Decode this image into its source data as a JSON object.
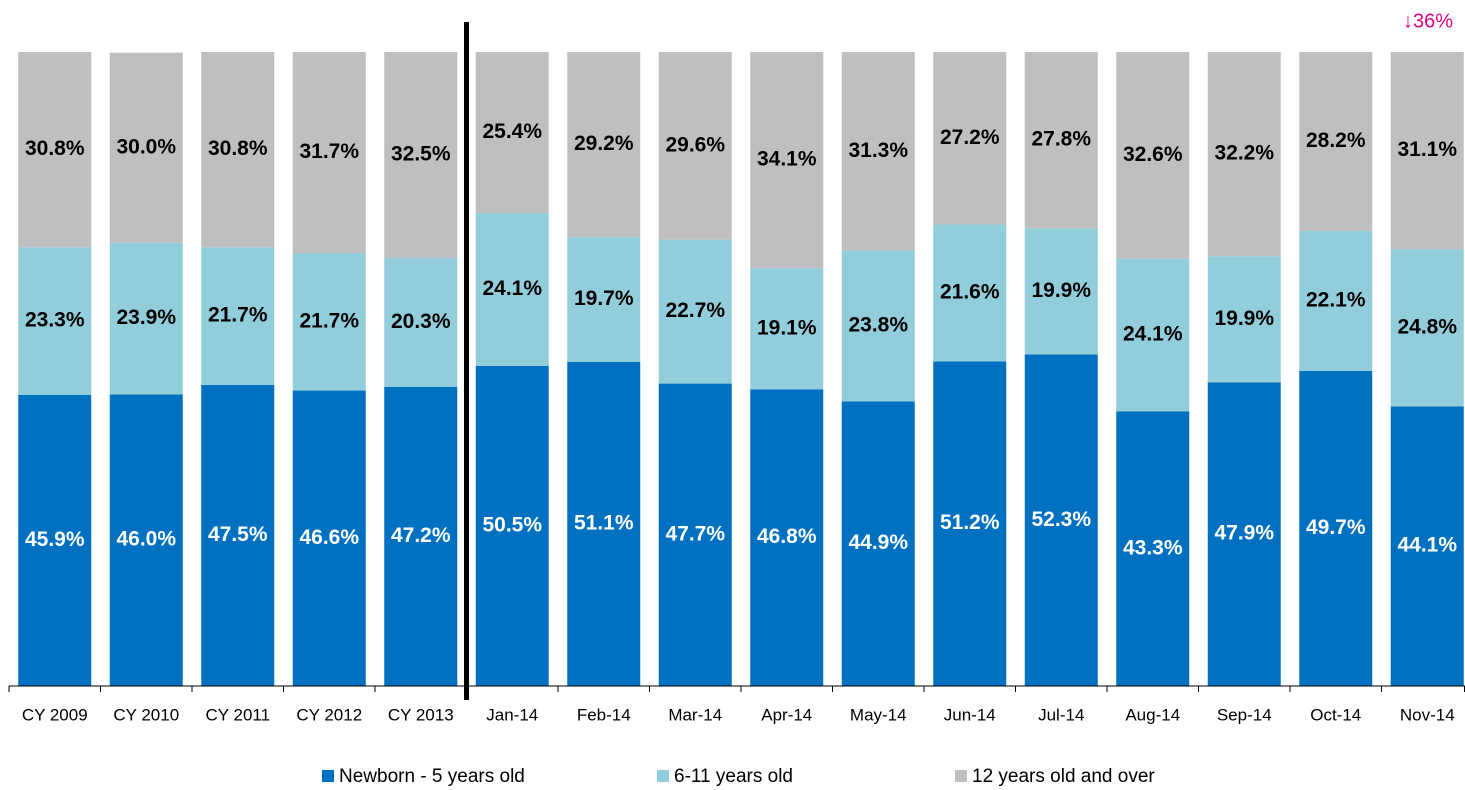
{
  "chart_data": {
    "type": "stacked_bar",
    "annotation": "↓36%",
    "categories": [
      "CY 2009",
      "CY 2010",
      "CY 2011",
      "CY 2012",
      "CY 2013",
      "Jan-14",
      "Feb-14",
      "Mar-14",
      "Apr-14",
      "May-14",
      "Jun-14",
      "Jul-14",
      "Aug-14",
      "Sep-14",
      "Oct-14",
      "Nov-14"
    ],
    "ylim": [
      0,
      100
    ],
    "series": [
      {
        "name": "Newborn - 5 years old",
        "color": "#0070c0",
        "label_color": "#ffffff",
        "values": [
          45.9,
          46.0,
          47.5,
          46.6,
          47.2,
          50.5,
          51.1,
          47.7,
          46.8,
          44.9,
          51.2,
          52.3,
          43.3,
          47.9,
          49.7,
          44.1
        ],
        "value_labels": [
          "45.9%",
          "46.0%",
          "47.5%",
          "46.6%",
          "47.2%",
          "50.5%",
          "51.1%",
          "47.7%",
          "46.8%",
          "44.9%",
          "51.2%",
          "52.3%",
          "43.3%",
          "47.9%",
          "49.7%",
          "44.1%"
        ]
      },
      {
        "name": "6-11 years old",
        "color": "#92cddc",
        "label_color": "#000000",
        "values": [
          23.3,
          23.9,
          21.7,
          21.7,
          20.3,
          24.1,
          19.7,
          22.7,
          19.1,
          23.8,
          21.6,
          19.9,
          24.1,
          19.9,
          22.1,
          24.8
        ],
        "value_labels": [
          "23.3%",
          "23.9%",
          "21.7%",
          "21.7%",
          "20.3%",
          "24.1%",
          "19.7%",
          "22.7%",
          "19.1%",
          "23.8%",
          "21.6%",
          "19.9%",
          "24.1%",
          "19.9%",
          "22.1%",
          "24.8%"
        ]
      },
      {
        "name": "12 years old and over",
        "color": "#bfbfbf",
        "label_color": "#000000",
        "values": [
          30.8,
          30.0,
          30.8,
          31.7,
          32.5,
          25.4,
          29.2,
          29.6,
          34.1,
          31.3,
          27.2,
          27.8,
          32.6,
          32.2,
          28.2,
          31.1
        ],
        "value_labels": [
          "30.8%",
          "30.0%",
          "30.8%",
          "31.7%",
          "32.5%",
          "25.4%",
          "29.2%",
          "29.6%",
          "34.1%",
          "31.3%",
          "27.2%",
          "27.8%",
          "32.6%",
          "32.2%",
          "28.2%",
          "31.1%"
        ]
      }
    ]
  }
}
